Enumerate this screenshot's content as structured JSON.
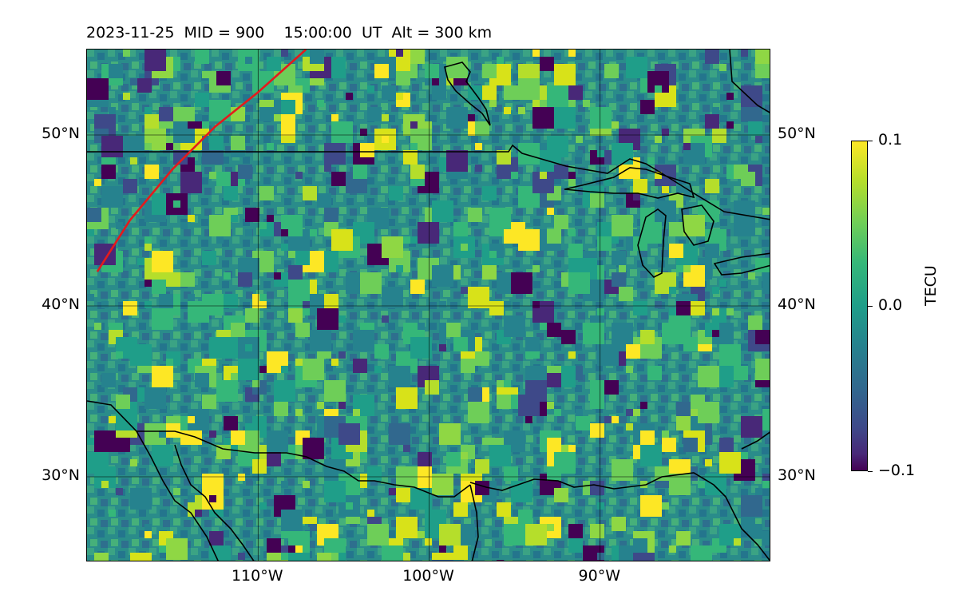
{
  "title": "2023-11-25  MID = 900    15:00:00  UT  Alt = 300 km",
  "map": {
    "projection": "equirectangular",
    "lon_range": [
      -120,
      -80
    ],
    "lat_range": [
      25,
      55
    ],
    "lat_ticks": [
      {
        "value": 30,
        "label": "30°N"
      },
      {
        "value": 40,
        "label": "40°N"
      },
      {
        "value": 50,
        "label": "50°N"
      }
    ],
    "lon_ticks": [
      {
        "value": -110,
        "label": "110°W"
      },
      {
        "value": -100,
        "label": "100°W"
      },
      {
        "value": -90,
        "label": "90°W"
      }
    ],
    "grid": true,
    "overlays": [
      "coastlines",
      "country-borders"
    ],
    "trajectory": {
      "color": "#e41a1c",
      "points": [
        [
          -119.4,
          42.0
        ],
        [
          -117.5,
          45.0
        ],
        [
          -115.0,
          48.0
        ],
        [
          -112.5,
          50.5
        ],
        [
          -110.0,
          52.5
        ],
        [
          -107.2,
          55.0
        ]
      ]
    }
  },
  "colorbar": {
    "label": "TECU",
    "colormap": "viridis",
    "vmin": -0.1,
    "vmax": 0.1,
    "ticks": [
      {
        "value": 0.1,
        "label": "0.1"
      },
      {
        "value": 0.0,
        "label": "0.0"
      },
      {
        "value": -0.1,
        "label": "−0.1"
      }
    ]
  }
}
